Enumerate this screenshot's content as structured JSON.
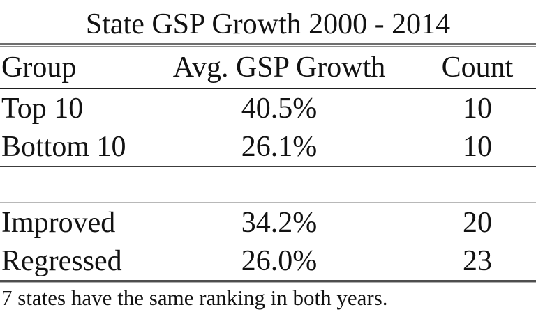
{
  "title": "State GSP Growth 2000 - 2014",
  "table": {
    "headers": {
      "group": "Group",
      "growth": "Avg. GSP Growth",
      "count": "Count"
    },
    "rows": [
      {
        "group": "Top 10",
        "growth": "40.5%",
        "count": "10"
      },
      {
        "group": "Bottom 10",
        "growth": "26.1%",
        "count": "10"
      },
      {
        "group": "Improved",
        "growth": "34.2%",
        "count": "20"
      },
      {
        "group": "Regressed",
        "growth": "26.0%",
        "count": "23"
      }
    ]
  },
  "footnote": "7 states have the same ranking in both years.",
  "colors": {
    "background": "#ffffff",
    "text": "#121212",
    "rule_dark": "#1f1f1f",
    "rule_mid": "#3c3c3c",
    "rule_gray": "#6e6e6e",
    "rule_light": "#b8b8b8"
  },
  "chart_data": {
    "type": "table",
    "title": "State GSP Growth 2000 - 2014",
    "columns": [
      "Group",
      "Avg. GSP Growth",
      "Count"
    ],
    "rows": [
      [
        "Top 10",
        "40.5%",
        "10"
      ],
      [
        "Bottom 10",
        "26.1%",
        "10"
      ],
      [
        "Improved",
        "34.2%",
        "20"
      ],
      [
        "Regressed",
        "26.0%",
        "23"
      ]
    ],
    "groupings": [
      {
        "section": "rank-extremes",
        "rows": [
          "Top 10",
          "Bottom 10"
        ]
      },
      {
        "section": "rank-change",
        "rows": [
          "Improved",
          "Regressed"
        ]
      }
    ],
    "footnote": "7 states have the same ranking in both years.",
    "layout": "three columns: left-aligned group labels, centered growth percentages, centered counts; double rule under title, single rules between sections, heavy double rule above footnote"
  }
}
